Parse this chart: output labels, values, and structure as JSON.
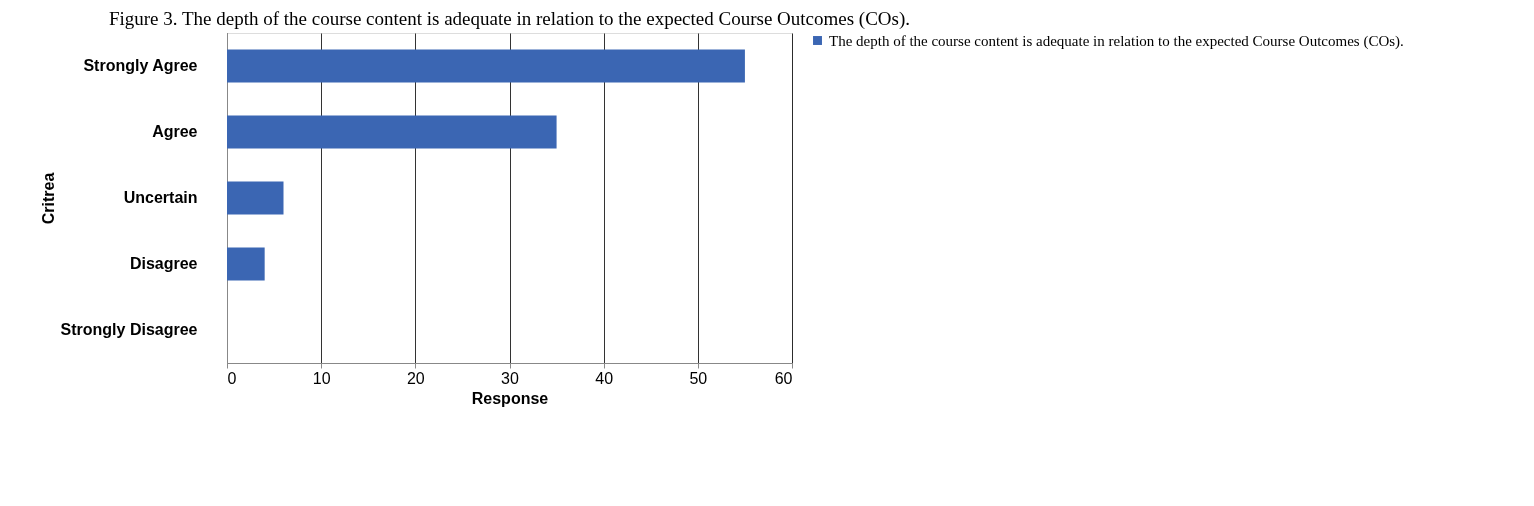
{
  "chart_data": {
    "type": "bar",
    "orientation": "horizontal",
    "title": "Figure 3. The depth of the course content is adequate in relation to the expected Course Outcomes (COs).",
    "xlabel": "Response",
    "ylabel": "Critrea",
    "categories": [
      "Strongly Agree",
      "Agree",
      "Uncertain",
      "Disagree",
      "Strongly Disagree"
    ],
    "series": [
      {
        "name": "The depth of the course content is adequate in relation to the expected Course Outcomes (COs).",
        "color": "#3b66b3",
        "values": [
          55,
          35,
          6,
          4,
          0
        ]
      }
    ],
    "xlim": [
      0,
      60
    ],
    "xticks": [
      0,
      10,
      20,
      30,
      40,
      50,
      60
    ],
    "grid": "x",
    "legend": "right"
  }
}
